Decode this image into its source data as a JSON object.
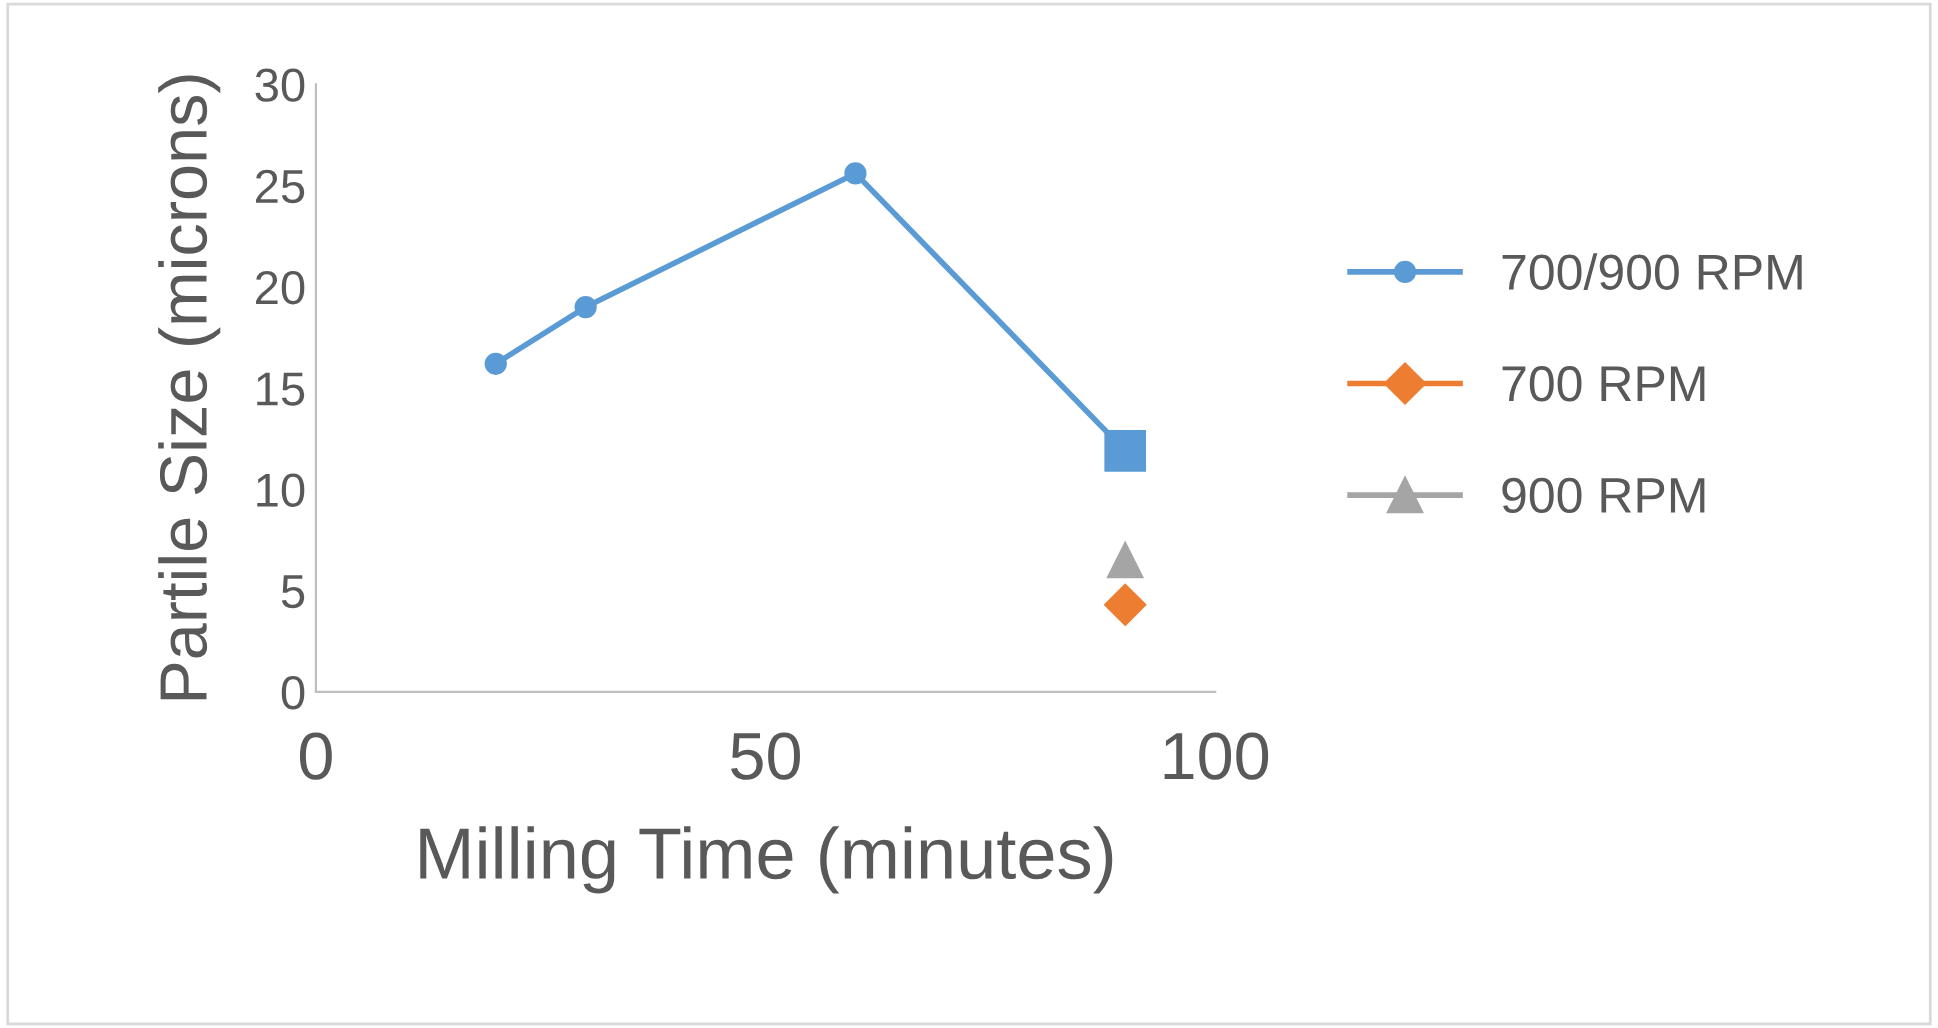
{
  "chart_data": {
    "type": "line",
    "xlabel": "Milling Time (minutes)",
    "ylabel": "Partile Size (microns)",
    "xlim": [
      0,
      100
    ],
    "xticks": [
      0,
      50,
      100
    ],
    "ylim": [
      0,
      30
    ],
    "yticks": [
      0,
      5,
      10,
      15,
      20,
      25,
      30
    ],
    "grid": false,
    "legend": "right",
    "series": [
      {
        "name": "700/900 RPM",
        "color": "#5b9bd5",
        "marker": "circle",
        "x": [
          20,
          30,
          60,
          90
        ],
        "values": [
          16.2,
          19.0,
          25.6,
          11.9
        ]
      },
      {
        "name": "700 RPM",
        "type": "scatter",
        "color": "#ed7d31",
        "marker": "diamond",
        "x": [
          90
        ],
        "values": [
          4.3
        ]
      },
      {
        "name": "900 RPM",
        "type": "scatter",
        "color": "#a5a5a5",
        "marker": "triangle",
        "x": [
          90
        ],
        "values": [
          6.5
        ]
      },
      {
        "type": "scatter",
        "color": "#5b9bd5",
        "marker": "square",
        "x": [
          90
        ],
        "values": [
          11.9
        ]
      }
    ]
  }
}
